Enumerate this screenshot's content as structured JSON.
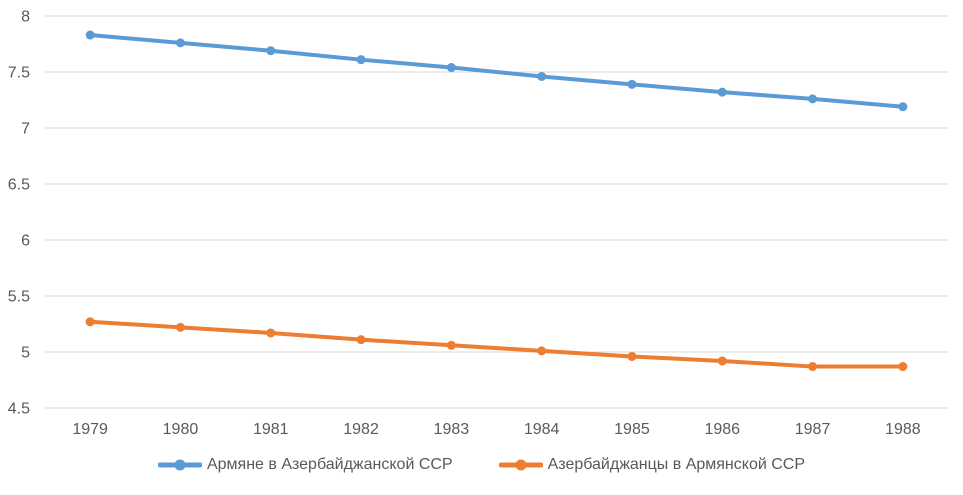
{
  "chart_data": {
    "type": "line",
    "categories": [
      "1979",
      "1980",
      "1981",
      "1982",
      "1983",
      "1984",
      "1985",
      "1986",
      "1987",
      "1988"
    ],
    "series": [
      {
        "name": "Армяне в Азербайджанской ССР",
        "color": "#5B9BD5",
        "values": [
          7.83,
          7.76,
          7.69,
          7.61,
          7.54,
          7.46,
          7.39,
          7.32,
          7.26,
          7.19
        ]
      },
      {
        "name": "Азербайджанцы в Армянской ССР",
        "color": "#ED7D31",
        "values": [
          5.27,
          5.22,
          5.17,
          5.11,
          5.06,
          5.01,
          4.96,
          4.92,
          4.87,
          4.87
        ]
      }
    ],
    "ylim": [
      4.5,
      8
    ],
    "y_tick_labels": [
      "8",
      "7.5",
      "7",
      "6.5",
      "6",
      "5.5",
      "5",
      "4.5"
    ],
    "grid": true,
    "legend_position": "bottom"
  },
  "style": {
    "grid_color": "#D9D9D9",
    "label_color": "#595959",
    "background": "#FFFFFF"
  }
}
